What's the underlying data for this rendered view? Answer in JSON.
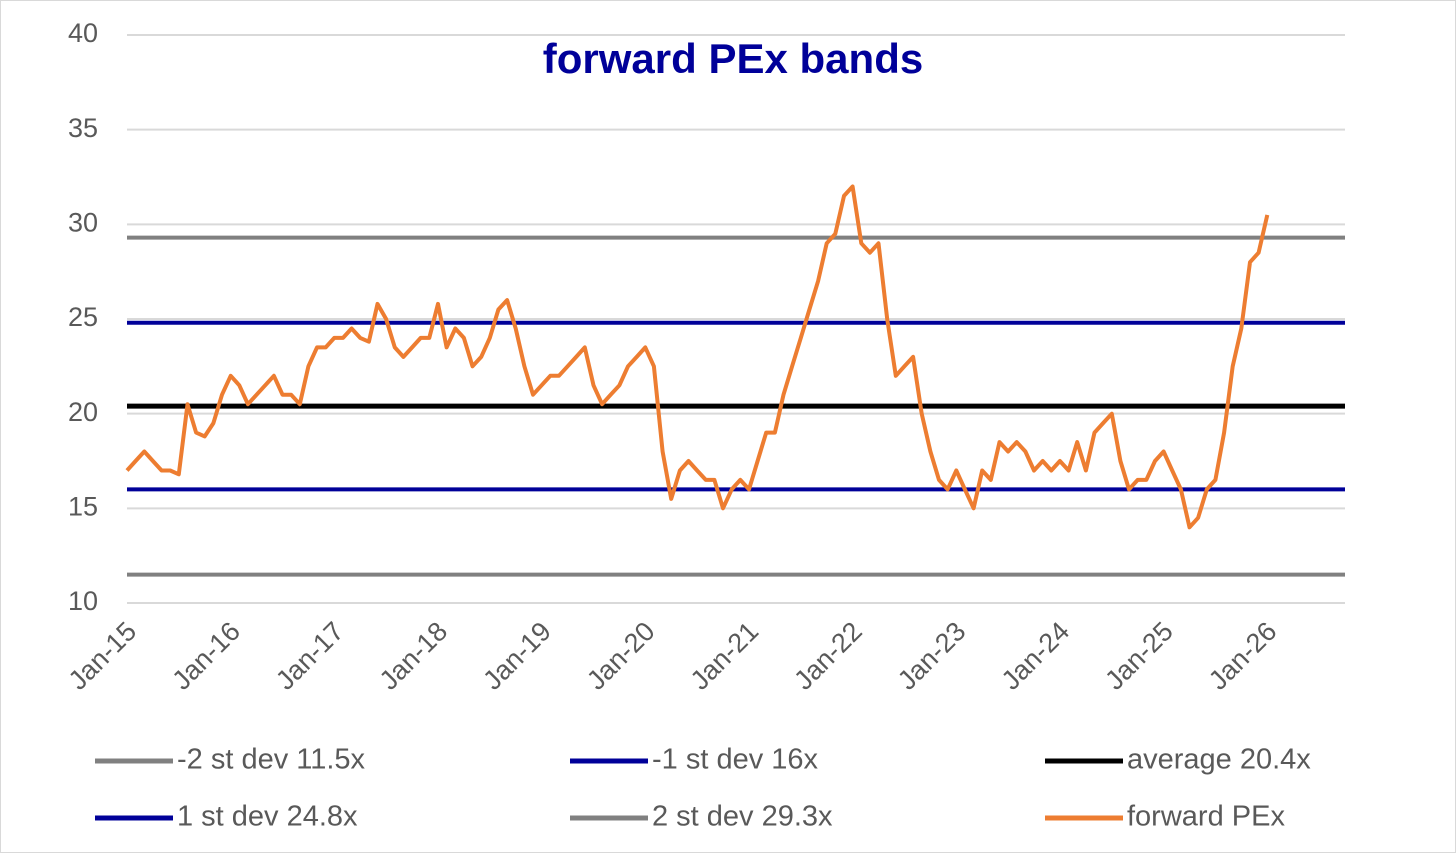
{
  "chart_data": {
    "type": "line",
    "title": "forward PEx bands",
    "title_color": "#000099",
    "x": [
      "2015-01",
      "2015-02",
      "2015-03",
      "2015-04",
      "2015-05",
      "2015-06",
      "2015-07",
      "2015-08",
      "2015-09",
      "2015-10",
      "2015-11",
      "2015-12",
      "2016-01",
      "2016-02",
      "2016-03",
      "2016-04",
      "2016-05",
      "2016-06",
      "2016-07",
      "2016-08",
      "2016-09",
      "2016-10",
      "2016-11",
      "2016-12",
      "2017-01",
      "2017-02",
      "2017-03",
      "2017-04",
      "2017-05",
      "2017-06",
      "2017-07",
      "2017-08",
      "2017-09",
      "2017-10",
      "2017-11",
      "2017-12",
      "2018-01",
      "2018-02",
      "2018-03",
      "2018-04",
      "2018-05",
      "2018-06",
      "2018-07",
      "2018-08",
      "2018-09",
      "2018-10",
      "2018-11",
      "2018-12",
      "2019-01",
      "2019-02",
      "2019-03",
      "2019-04",
      "2019-05",
      "2019-06",
      "2019-07",
      "2019-08",
      "2019-09",
      "2019-10",
      "2019-11",
      "2019-12",
      "2020-01",
      "2020-02",
      "2020-03",
      "2020-04",
      "2020-05",
      "2020-06",
      "2020-07",
      "2020-08",
      "2020-09",
      "2020-10",
      "2020-11",
      "2020-12",
      "2021-01",
      "2021-02",
      "2021-03",
      "2021-04",
      "2021-05",
      "2021-06",
      "2021-07",
      "2021-08",
      "2021-09",
      "2021-10",
      "2021-11",
      "2021-12",
      "2022-01",
      "2022-02",
      "2022-03",
      "2022-04",
      "2022-05",
      "2022-06",
      "2022-07",
      "2022-08",
      "2022-09",
      "2022-10",
      "2022-11",
      "2022-12",
      "2023-01",
      "2023-02",
      "2023-03",
      "2023-04",
      "2023-05",
      "2023-06",
      "2023-07",
      "2023-08",
      "2023-09",
      "2023-10",
      "2023-11",
      "2023-12",
      "2024-01",
      "2024-02",
      "2024-03",
      "2024-04",
      "2024-05",
      "2024-06",
      "2024-07",
      "2024-08",
      "2024-09",
      "2024-10",
      "2024-11",
      "2024-12",
      "2025-01",
      "2025-02",
      "2025-03",
      "2025-04",
      "2025-05",
      "2025-06",
      "2025-07",
      "2025-08",
      "2025-09",
      "2025-10",
      "2025-11",
      "2025-12",
      "2026-01"
    ],
    "bands": [
      {
        "name": "-2 st dev 11.5x",
        "value": 11.5,
        "color": "#808080"
      },
      {
        "name": "-1 st dev 16x",
        "value": 16,
        "color": "#000099"
      },
      {
        "name": "average 20.4x",
        "value": 20.4,
        "color": "#000000"
      },
      {
        "name": "1 st dev 24.8x",
        "value": 24.8,
        "color": "#000099"
      },
      {
        "name": "2 st dev 29.3x",
        "value": 29.3,
        "color": "#808080"
      }
    ],
    "series": [
      {
        "name": "forward PEx",
        "color": "#ed7d31",
        "values": [
          17,
          17.5,
          18,
          17.5,
          17,
          17,
          16.8,
          20.5,
          19,
          18.8,
          19.5,
          21,
          22,
          21.5,
          20.5,
          21,
          21.5,
          22,
          21,
          21,
          20.5,
          22.5,
          23.5,
          23.5,
          24,
          24,
          24.5,
          24,
          23.8,
          25.8,
          25,
          23.5,
          23,
          23.5,
          24,
          24,
          25.8,
          23.5,
          24.5,
          24,
          22.5,
          23,
          24,
          25.5,
          26,
          24.5,
          22.5,
          21,
          21.5,
          22,
          22,
          22.5,
          23,
          23.5,
          21.5,
          20.5,
          21,
          21.5,
          22.5,
          23,
          23.5,
          22.5,
          18,
          15.5,
          17,
          17.5,
          17,
          16.5,
          16.5,
          15,
          16,
          16.5,
          16,
          17.5,
          19,
          19,
          21,
          22.5,
          24,
          25.5,
          27,
          29,
          29.5,
          31.5,
          32,
          29,
          28.5,
          29,
          25,
          22,
          22.5,
          23,
          20,
          18,
          16.5,
          16,
          17,
          16,
          15,
          17,
          16.5,
          18.5,
          18,
          18.5,
          18,
          17,
          17.5,
          17,
          17.5,
          17,
          18.5,
          17,
          19,
          19.5,
          20,
          17.5,
          16,
          16.5,
          16.5,
          17.5,
          18,
          17,
          16,
          14,
          14.5,
          16,
          16.5,
          19,
          22.5,
          24.5,
          28,
          28.5,
          30.5
        ]
      }
    ],
    "xlim": [
      "2015-01",
      "2026-10"
    ],
    "xticks": [
      {
        "value": "2015-01",
        "label": "Jan-15"
      },
      {
        "value": "2016-01",
        "label": "Jan-16"
      },
      {
        "value": "2017-01",
        "label": "Jan-17"
      },
      {
        "value": "2018-01",
        "label": "Jan-18"
      },
      {
        "value": "2019-01",
        "label": "Jan-19"
      },
      {
        "value": "2020-01",
        "label": "Jan-20"
      },
      {
        "value": "2021-01",
        "label": "Jan-21"
      },
      {
        "value": "2022-01",
        "label": "Jan-22"
      },
      {
        "value": "2023-01",
        "label": "Jan-23"
      },
      {
        "value": "2024-01",
        "label": "Jan-24"
      },
      {
        "value": "2025-01",
        "label": "Jan-25"
      },
      {
        "value": "2026-01",
        "label": "Jan-26"
      }
    ],
    "ylim": [
      10,
      40
    ],
    "yticks": [
      10,
      15,
      20,
      25,
      30,
      35,
      40
    ],
    "grid": true
  }
}
